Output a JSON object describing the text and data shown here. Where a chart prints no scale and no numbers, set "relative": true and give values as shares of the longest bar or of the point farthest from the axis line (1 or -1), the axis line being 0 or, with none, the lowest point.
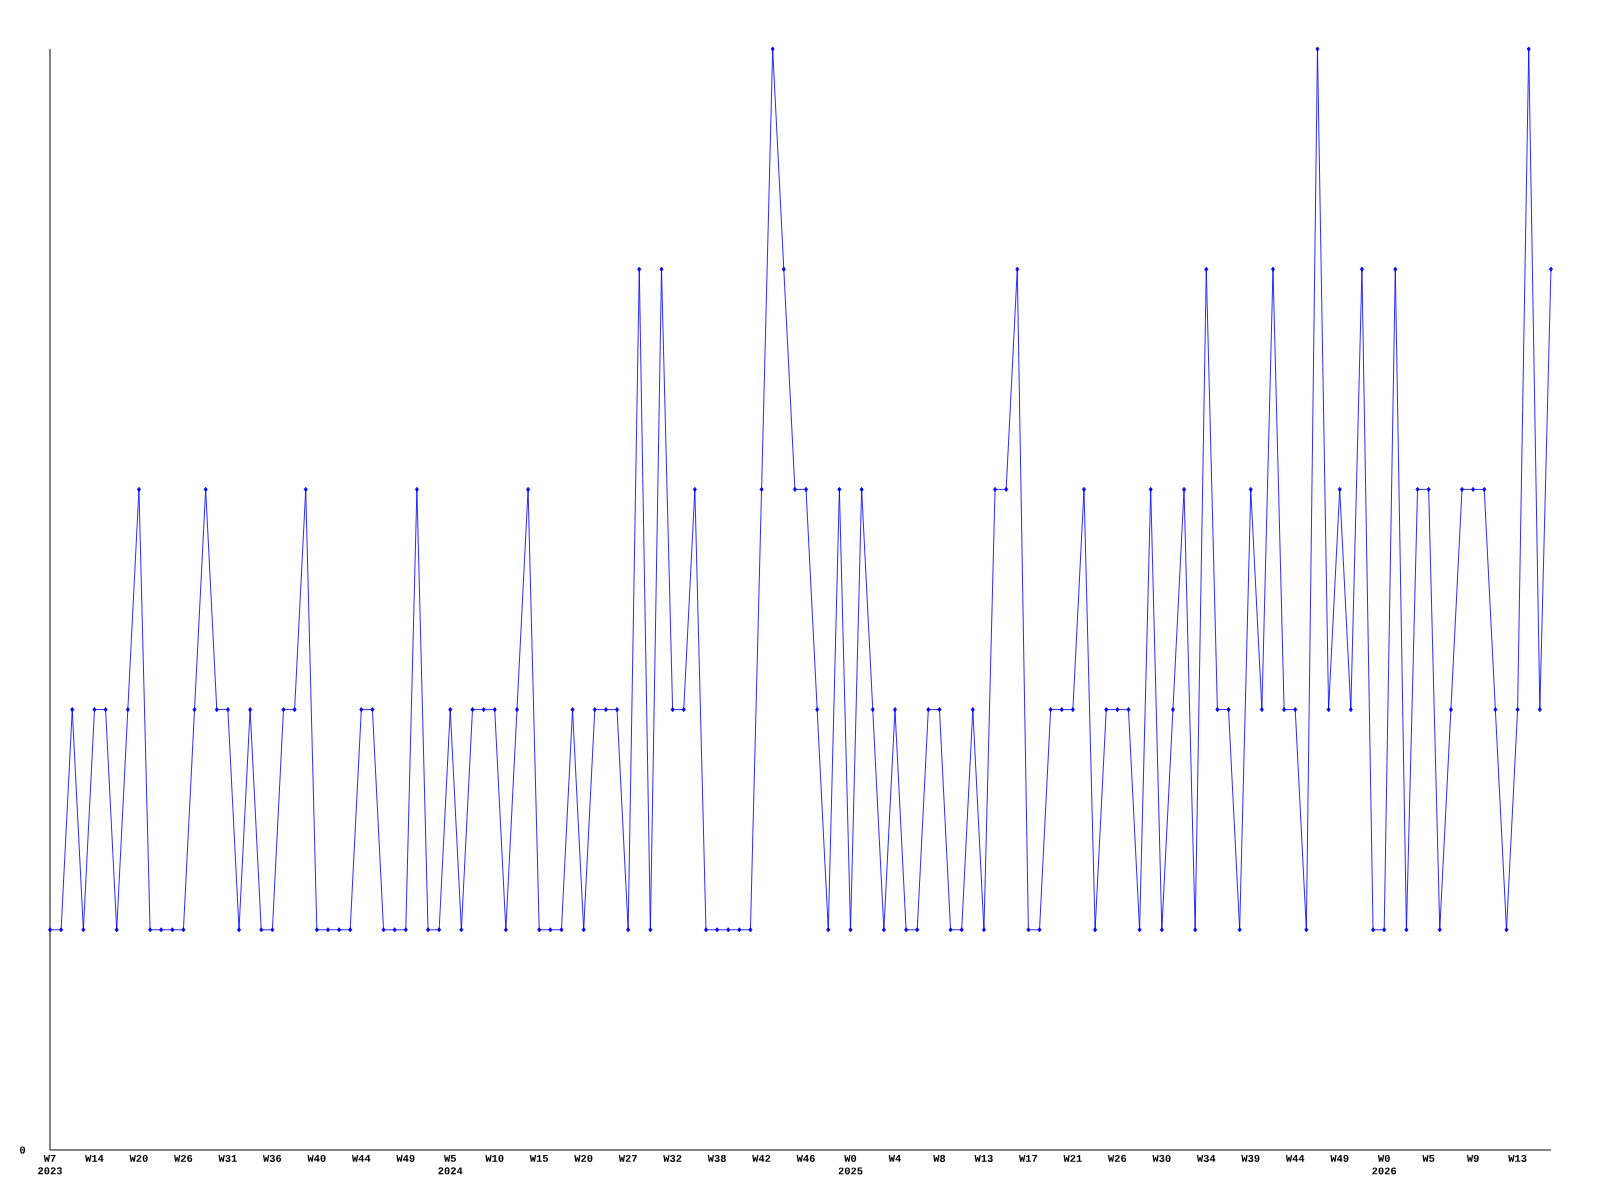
{
  "chart_data": {
    "type": "line",
    "relative": true,
    "color": "#0000ff",
    "marker": "diamond",
    "line_style": "solid",
    "categories": [
      "W7\n2023",
      null,
      null,
      null,
      "W14",
      null,
      null,
      null,
      "W20",
      null,
      null,
      null,
      "W26",
      null,
      null,
      null,
      "W31",
      null,
      null,
      null,
      "W36",
      null,
      null,
      null,
      "W40",
      null,
      null,
      null,
      "W44",
      null,
      null,
      null,
      "W49",
      null,
      null,
      null,
      "W5\n2024",
      null,
      null,
      null,
      "W10",
      null,
      null,
      null,
      "W15",
      null,
      null,
      null,
      "W20",
      null,
      null,
      null,
      "W27",
      null,
      null,
      null,
      "W32",
      null,
      null,
      null,
      "W38",
      null,
      null,
      null,
      "W42",
      null,
      null,
      null,
      "W46",
      null,
      null,
      null,
      "W0\n2025",
      null,
      null,
      null,
      "W4",
      null,
      null,
      null,
      "W8",
      null,
      null,
      null,
      "W13",
      null,
      null,
      null,
      "W17",
      null,
      null,
      null,
      "W21",
      null,
      null,
      null,
      "W26",
      null,
      null,
      null,
      "W30",
      null,
      null,
      null,
      "W34",
      null,
      null,
      null,
      "W39",
      null,
      null,
      null,
      "W44",
      null,
      null,
      null,
      "W49",
      null,
      null,
      null,
      "W0\n2026",
      null,
      null,
      null,
      "W5",
      null,
      null,
      null,
      "W9",
      null,
      null,
      null,
      "W13",
      null,
      null,
      null
    ],
    "values": [
      0.2,
      0.2,
      0.4,
      0.2,
      0.4,
      0.4,
      0.2,
      0.4,
      0.6,
      0.2,
      0.2,
      0.2,
      0.2,
      0.4,
      0.6,
      0.4,
      0.4,
      0.2,
      0.4,
      0.2,
      0.2,
      0.4,
      0.4,
      0.6,
      0.2,
      0.2,
      0.2,
      0.2,
      0.4,
      0.4,
      0.2,
      0.2,
      0.2,
      0.6,
      0.2,
      0.2,
      0.4,
      0.2,
      0.4,
      0.4,
      0.4,
      0.2,
      0.4,
      0.6,
      0.2,
      0.2,
      0.2,
      0.4,
      0.2,
      0.4,
      0.4,
      0.4,
      0.2,
      0.8,
      0.2,
      0.8,
      0.4,
      0.4,
      0.6,
      0.2,
      0.2,
      0.2,
      0.2,
      0.2,
      0.6,
      1.0,
      0.8,
      0.6,
      0.6,
      0.4,
      0.2,
      0.6,
      0.2,
      0.6,
      0.4,
      0.2,
      0.4,
      0.2,
      0.2,
      0.4,
      0.4,
      0.2,
      0.2,
      0.4,
      0.2,
      0.6,
      0.6,
      0.8,
      0.2,
      0.2,
      0.4,
      0.4,
      0.4,
      0.6,
      0.2,
      0.4,
      0.4,
      0.4,
      0.2,
      0.6,
      0.2,
      0.4,
      0.6,
      0.2,
      0.8,
      0.4,
      0.4,
      0.2,
      0.6,
      0.4,
      0.8,
      0.4,
      0.4,
      0.2,
      1.0,
      0.4,
      0.6,
      0.4,
      0.8,
      0.2,
      0.2,
      0.8,
      0.2,
      0.6,
      0.6,
      0.2,
      0.4,
      0.6,
      0.6,
      0.6,
      0.4,
      0.2,
      0.4,
      1.0,
      0.4,
      0.8
    ],
    "annotations": [
      "0"
    ]
  }
}
